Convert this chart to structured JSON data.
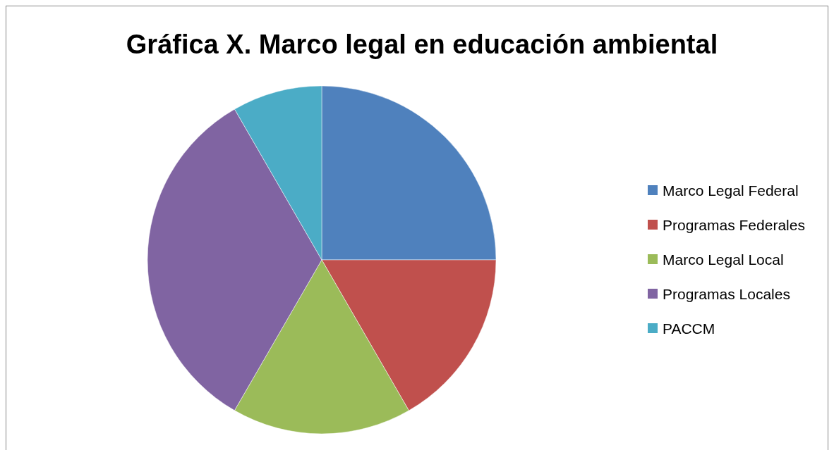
{
  "chart_data": {
    "type": "pie",
    "title": "Gráfica X. Marco legal en educación ambiental",
    "categories": [
      "Marco Legal Federal",
      "Programas Federales",
      "Marco Legal Local",
      "Programas Locales",
      "PACCM"
    ],
    "values": [
      25,
      16.67,
      16.67,
      33.33,
      8.33
    ],
    "colors": [
      "#4f81bd",
      "#c0504d",
      "#9bbb59",
      "#8064a2",
      "#4bacc6"
    ],
    "legend": "right"
  }
}
